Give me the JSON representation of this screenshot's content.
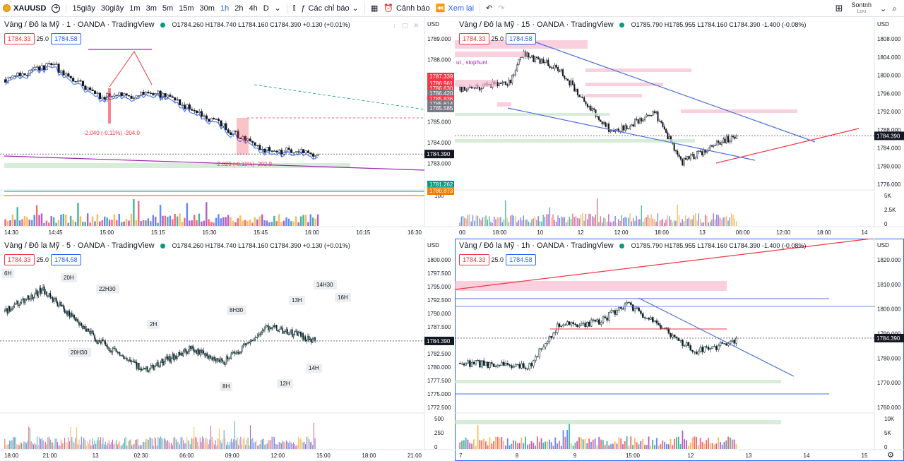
{
  "toolbar": {
    "symbol": "XAUUSD",
    "intervals": [
      "15giây",
      "30giây",
      "1m",
      "3m",
      "5m",
      "15m",
      "30m",
      "1h",
      "2h",
      "4h",
      "D"
    ],
    "active_interval": "1h",
    "indicators_label": "Các chỉ báo",
    "alert_label": "Cảnh báo",
    "replay_label": "Xem lại",
    "user_name": "Sontnh",
    "user_sub": "Lưu"
  },
  "colors": {
    "up": "#089981",
    "down": "#f23645",
    "accent": "#2962ff",
    "price_line": "#131722"
  },
  "quote": {
    "sell": "1784.33",
    "spread": "25.0",
    "buy": "1784.58"
  },
  "current_price": "1784.390",
  "panes": [
    {
      "title": "Vàng / Đô la Mỹ · 1 · OANDA · TradingView",
      "ohlc": "O1784.260 H1784.740 L1784.160 C1784.390 +0.130 (+0.01%)",
      "currency": "USD",
      "y_labels": [
        "1789.000",
        "1788.000",
        "1787.000",
        "1786.000",
        "1785.000",
        "1784.000",
        "1783.000",
        "1782.000"
      ],
      "x_labels": [
        "14:30",
        "14:45",
        "15:00",
        "15:15",
        "15:30",
        "15:45",
        "16:00",
        "16:15",
        "16:30"
      ],
      "volume_label": "100",
      "price_tags": [
        {
          "text": "1787.339",
          "color": "#f23645"
        },
        {
          "text": "1786.961",
          "color": "#f23645"
        },
        {
          "text": "1786.630",
          "color": "#f23645"
        },
        {
          "text": "1786.420",
          "color": "#787b86"
        },
        {
          "text": "1785.836",
          "color": "#f23645"
        },
        {
          "text": "1785.614",
          "color": "#787b86"
        },
        {
          "text": "1785.585",
          "color": "#787b86"
        },
        {
          "text": "1781.262",
          "color": "#089981"
        },
        {
          "text": "1780.873",
          "color": "#f57c00"
        }
      ],
      "annotations": [
        "-2.040 (-0.11%) -204.0",
        "-2.029 (-0.11%) -202.9"
      ]
    },
    {
      "title": "Vàng / Đô la Mỹ · 15 · OANDA · TradingView",
      "ohlc": "O1785.790 H1785.955 L1784.160 C1784.390 -1.400 (-0.08%)",
      "currency": "USD",
      "y_labels": [
        "1808.000",
        "1804.000",
        "1800.000",
        "1796.000",
        "1792.000",
        "1788.000",
        "1784.000",
        "1780.000",
        "1776.000"
      ],
      "x_labels": [
        "00",
        "18:00",
        "10",
        "12",
        "12:00",
        "18:00",
        "13",
        "06:00",
        "12:00",
        "18:00",
        "14"
      ],
      "volume_labels": [
        "5K",
        "2.5K",
        "0"
      ],
      "annotation": "ut , stophunt"
    },
    {
      "title": "Vàng / Đô la Mỹ · 5 · OANDA · TradingView",
      "ohlc": "O1784.260 H1784.740 L1784.160 C1784.390 +0.130 (+0.01%)",
      "currency": "USD",
      "y_labels": [
        "1800.000",
        "1797.500",
        "1795.000",
        "1792.500",
        "1790.000",
        "1787.500",
        "1785.000",
        "1782.500",
        "1780.000",
        "1777.500",
        "1775.000",
        "1772.500"
      ],
      "x_labels": [
        "18:00",
        "21:00",
        "13",
        "02:30",
        "06:00",
        "09:00",
        "12:00",
        "15:00",
        "18:00",
        "21:00"
      ],
      "volume_labels": [
        "500",
        "250",
        "0"
      ],
      "session_tags": [
        "6H",
        "20H",
        "22H30",
        "2H",
        "8H30",
        "13H",
        "14H30",
        "16H",
        "20H30",
        "8H",
        "12H",
        "14H"
      ]
    },
    {
      "title": "Vàng / Đô la Mỹ · 1h · OANDA · TradingView",
      "ohlc": "O1785.790 H1785.955 L1784.160 C1784.390 -1.400 (-0.08%)",
      "currency": "USD",
      "y_labels": [
        "1820.000",
        "1810.000",
        "1800.000",
        "1790.000",
        "1780.000",
        "1770.000",
        "1760.000"
      ],
      "x_labels": [
        "7",
        "8",
        "9",
        "15:00",
        "12",
        "13",
        "14",
        "15"
      ],
      "volume_labels": [
        "10K",
        "5K",
        "0"
      ]
    }
  ]
}
